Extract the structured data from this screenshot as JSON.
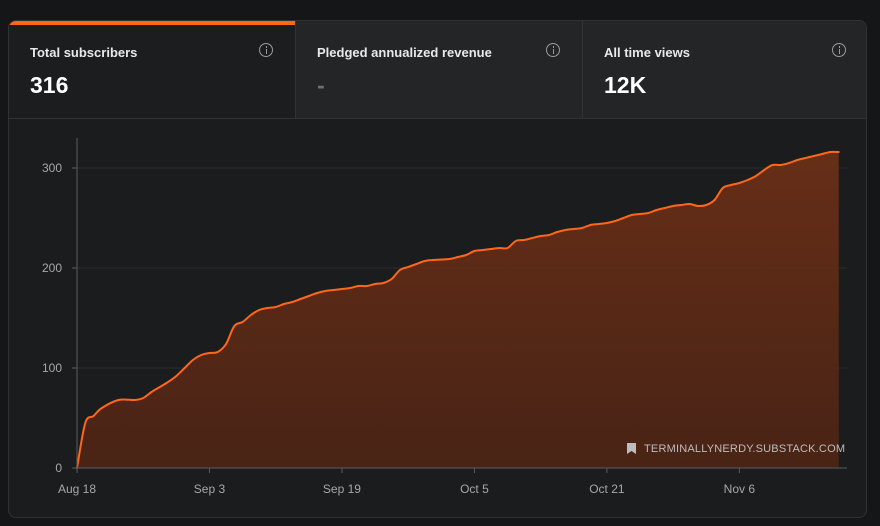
{
  "stats": [
    {
      "label": "Total subscribers",
      "value": "316",
      "active": true
    },
    {
      "label": "Pledged annualized revenue",
      "value": "-",
      "active": false
    },
    {
      "label": "All time views",
      "value": "12K",
      "active": false
    }
  ],
  "icons": {
    "info": "info-circle-icon",
    "watermark": "substack-bookmark-icon"
  },
  "colors": {
    "accent": "#ff6719",
    "area_fill": "#5a2a16",
    "background": "#1b1c1e"
  },
  "watermark_text": "TERMINALLYNERDY.SUBSTACK.COM",
  "chart_data": {
    "type": "area",
    "title": "",
    "xlabel": "",
    "ylabel": "",
    "ylim": [
      0,
      330
    ],
    "yticks": [
      0,
      100,
      200,
      300
    ],
    "x_tick_labels": [
      "Aug 18",
      "Sep 3",
      "Sep 19",
      "Oct 5",
      "Oct 21",
      "Nov 6"
    ],
    "x_start": "Aug 18",
    "x_end": "Nov 19",
    "grid": true,
    "series": [
      {
        "name": "",
        "points": [
          [
            "Aug 18",
            0
          ],
          [
            "Aug 19",
            45
          ],
          [
            "Aug 20",
            52
          ],
          [
            "Aug 21",
            60
          ],
          [
            "Aug 23",
            68
          ],
          [
            "Aug 25",
            68
          ],
          [
            "Aug 26",
            70
          ],
          [
            "Aug 27",
            76
          ],
          [
            "Aug 28",
            81
          ],
          [
            "Aug 29",
            86
          ],
          [
            "Aug 30",
            92
          ],
          [
            "Aug 31",
            100
          ],
          [
            "Sep 1",
            108
          ],
          [
            "Sep 2",
            113
          ],
          [
            "Sep 3",
            115
          ],
          [
            "Sep 4",
            116
          ],
          [
            "Sep 5",
            124
          ],
          [
            "Sep 6",
            142
          ],
          [
            "Sep 7",
            146
          ],
          [
            "Sep 8",
            153
          ],
          [
            "Sep 9",
            158
          ],
          [
            "Sep 10",
            160
          ],
          [
            "Sep 11",
            161
          ],
          [
            "Sep 12",
            164
          ],
          [
            "Sep 13",
            166
          ],
          [
            "Sep 14",
            169
          ],
          [
            "Sep 15",
            172
          ],
          [
            "Sep 16",
            175
          ],
          [
            "Sep 17",
            177
          ],
          [
            "Sep 18",
            178
          ],
          [
            "Sep 19",
            179
          ],
          [
            "Sep 20",
            180
          ],
          [
            "Sep 21",
            182
          ],
          [
            "Sep 22",
            182
          ],
          [
            "Sep 23",
            184
          ],
          [
            "Sep 24",
            185
          ],
          [
            "Sep 25",
            189
          ],
          [
            "Sep 26",
            198
          ],
          [
            "Sep 27",
            201
          ],
          [
            "Sep 28",
            204
          ],
          [
            "Sep 29",
            207
          ],
          [
            "Sep 30",
            208
          ],
          [
            "Oct 2",
            209
          ],
          [
            "Oct 3",
            211
          ],
          [
            "Oct 4",
            213
          ],
          [
            "Oct 5",
            217
          ],
          [
            "Oct 6",
            218
          ],
          [
            "Oct 7",
            219
          ],
          [
            "Oct 8",
            220
          ],
          [
            "Oct 9",
            220
          ],
          [
            "Oct 10",
            227
          ],
          [
            "Oct 11",
            228
          ],
          [
            "Oct 12",
            230
          ],
          [
            "Oct 13",
            232
          ],
          [
            "Oct 14",
            233
          ],
          [
            "Oct 15",
            236
          ],
          [
            "Oct 16",
            238
          ],
          [
            "Oct 17",
            239
          ],
          [
            "Oct 18",
            240
          ],
          [
            "Oct 19",
            243
          ],
          [
            "Oct 20",
            244
          ],
          [
            "Oct 21",
            245
          ],
          [
            "Oct 22",
            247
          ],
          [
            "Oct 23",
            250
          ],
          [
            "Oct 24",
            253
          ],
          [
            "Oct 25",
            254
          ],
          [
            "Oct 26",
            255
          ],
          [
            "Oct 27",
            258
          ],
          [
            "Oct 28",
            260
          ],
          [
            "Oct 29",
            262
          ],
          [
            "Oct 30",
            263
          ],
          [
            "Oct 31",
            264
          ],
          [
            "Nov 1",
            262
          ],
          [
            "Nov 2",
            263
          ],
          [
            "Nov 3",
            268
          ],
          [
            "Nov 4",
            280
          ],
          [
            "Nov 5",
            283
          ],
          [
            "Nov 6",
            285
          ],
          [
            "Nov 7",
            288
          ],
          [
            "Nov 8",
            292
          ],
          [
            "Nov 9",
            298
          ],
          [
            "Nov 10",
            303
          ],
          [
            "Nov 11",
            303
          ],
          [
            "Nov 12",
            305
          ],
          [
            "Nov 13",
            308
          ],
          [
            "Nov 14",
            310
          ],
          [
            "Nov 15",
            312
          ],
          [
            "Nov 16",
            314
          ],
          [
            "Nov 17",
            316
          ],
          [
            "Nov 18",
            316
          ]
        ]
      }
    ]
  }
}
